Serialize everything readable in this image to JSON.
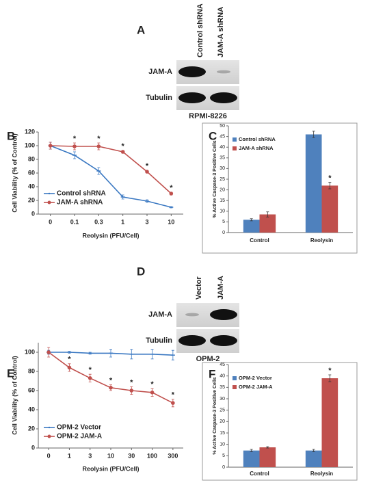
{
  "blots": [
    {
      "panel": "A",
      "lanes": [
        "Control shRNA",
        "JAM-A shRNA"
      ],
      "rows": [
        "JAM-A",
        "Tubulin"
      ],
      "cell_line": "RPMI-8226"
    },
    {
      "panel": "D",
      "lanes": [
        "Vector",
        "JAM-A"
      ],
      "rows": [
        "JAM-A",
        "Tubulin"
      ],
      "cell_line": "OPM-2"
    }
  ],
  "chart_data": [
    {
      "panel": "B",
      "type": "line",
      "categories": [
        "0",
        "0.1",
        "0.3",
        "1",
        "3",
        "10"
      ],
      "x_label": "Reolysin (PFU/Cell)",
      "y_label": "Cell Viability (% of Control)",
      "ylim": [
        0,
        120
      ],
      "yticks": [
        0,
        20,
        40,
        60,
        80,
        100,
        120
      ],
      "legend": "lower left",
      "series": [
        {
          "name": "Control shRNA",
          "color": "#3a78c2",
          "values": [
            100,
            86,
            63,
            25,
            19,
            10
          ],
          "errors": [
            5,
            5,
            5,
            3,
            2,
            1
          ],
          "markers": [
            null,
            null,
            null,
            null,
            null,
            null
          ]
        },
        {
          "name": "JAM-A shRNA",
          "color": "#c0504d",
          "values": [
            100,
            99,
            99,
            91,
            62,
            30
          ],
          "errors": [
            5,
            5,
            5,
            2,
            2,
            2
          ],
          "markers": [
            null,
            "*",
            "*",
            "*",
            "*",
            "*"
          ]
        }
      ]
    },
    {
      "panel": "C",
      "type": "bar",
      "categories": [
        "Control",
        "Reolysin"
      ],
      "y_label": "% Active Caspase-3 Positive Cells",
      "ylim": [
        0,
        50
      ],
      "yticks": [
        0,
        5,
        10,
        15,
        20,
        25,
        30,
        35,
        40,
        45,
        50
      ],
      "legend": "upper left",
      "series": [
        {
          "name": "Control shRNA",
          "color": "#4f81bd",
          "values": [
            6,
            46
          ],
          "errors": [
            0.5,
            1.5
          ],
          "markers": [
            null,
            null
          ]
        },
        {
          "name": "JAM-A shRNA",
          "color": "#c0504d",
          "values": [
            8.5,
            22
          ],
          "errors": [
            1.2,
            1.5
          ],
          "markers": [
            null,
            "*"
          ]
        }
      ]
    },
    {
      "panel": "E",
      "type": "line",
      "categories": [
        "0",
        "1",
        "3",
        "10",
        "30",
        "100",
        "300"
      ],
      "x_label": "Reolysin (PFU/Cell)",
      "y_label": "Cell Viability (% of Control)",
      "ylim": [
        0,
        110
      ],
      "yticks": [
        0,
        20,
        40,
        60,
        80,
        100
      ],
      "legend": "lower left",
      "series": [
        {
          "name": "OPM-2 Vector",
          "color": "#3a78c2",
          "values": [
            100,
            100,
            99,
            99,
            98,
            98,
            97
          ],
          "errors": [
            2,
            1,
            1,
            4,
            5,
            5,
            5
          ],
          "markers": [
            null,
            null,
            null,
            null,
            null,
            null,
            null
          ]
        },
        {
          "name": "OPM-2 JAM-A",
          "color": "#c0504d",
          "values": [
            100,
            84,
            73,
            63,
            60,
            58,
            47
          ],
          "errors": [
            5,
            4,
            4,
            3,
            4,
            4,
            4
          ],
          "markers": [
            null,
            "*",
            "*",
            "*",
            "*",
            "*",
            "*"
          ]
        }
      ]
    },
    {
      "panel": "F",
      "type": "bar",
      "categories": [
        "Control",
        "Reolysin"
      ],
      "y_label": "% Active Caspase-3 Positive Cells",
      "ylim": [
        0,
        45
      ],
      "yticks": [
        0,
        5,
        10,
        15,
        20,
        25,
        30,
        35,
        40,
        45
      ],
      "legend": "upper left",
      "series": [
        {
          "name": "OPM-2 Vector",
          "color": "#4f81bd",
          "values": [
            7.3,
            7.3
          ],
          "errors": [
            0.5,
            0.5
          ],
          "markers": [
            null,
            null
          ]
        },
        {
          "name": "OPM-2 JAM-A",
          "color": "#c0504d",
          "values": [
            8.7,
            39
          ],
          "errors": [
            0.3,
            1.5
          ],
          "markers": [
            null,
            "*"
          ]
        }
      ]
    }
  ]
}
